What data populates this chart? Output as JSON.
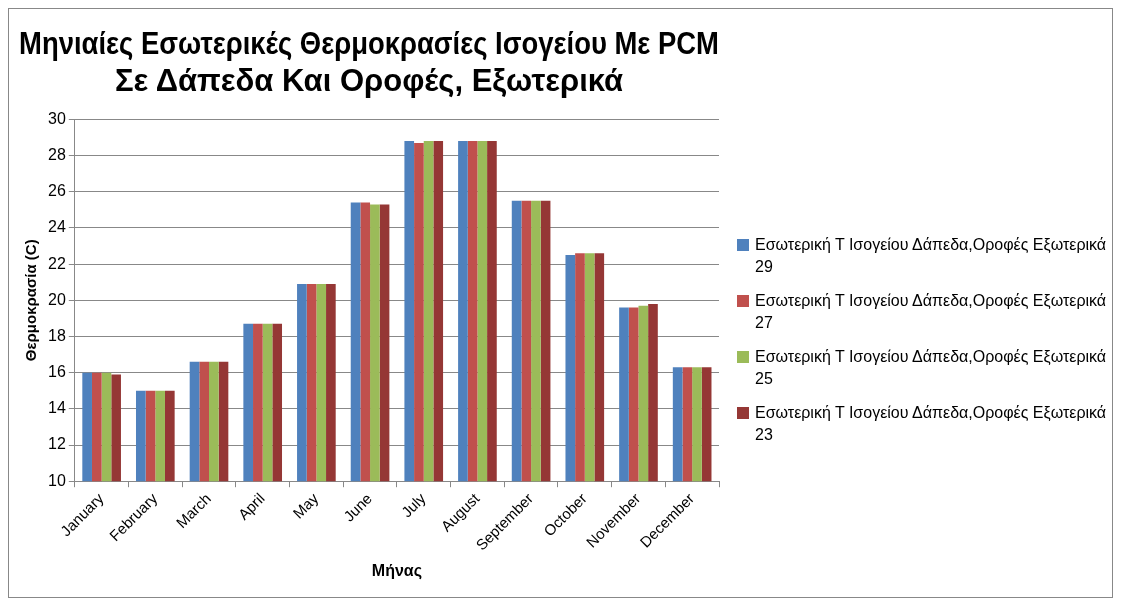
{
  "chart_data": {
    "type": "bar",
    "title": "Μηνιαίες Εσωτερικές Θερμοκρασίες Ισογείου Με PCM Σε Δάπεδα Και Οροφές, Εξωτερικά",
    "xlabel": "Μήνας",
    "ylabel": "Θερμοκρασία (C)",
    "categories": [
      "January",
      "February",
      "March",
      "April",
      "May",
      "June",
      "July",
      "August",
      "September",
      "October",
      "November",
      "December"
    ],
    "series": [
      {
        "name": "Εσωτερική Τ Ισογείου Δάπεδα,Οροφές Εξωτερικά 29",
        "color": "#4f81bd",
        "values": [
          16.0,
          15.0,
          16.6,
          18.7,
          20.9,
          25.4,
          28.8,
          28.8,
          25.5,
          22.5,
          19.6,
          16.3
        ]
      },
      {
        "name": "Εσωτερική Τ Ισογείου Δάπεδα,Οροφές Εξωτερικά 27",
        "color": "#c0504d",
        "values": [
          16.0,
          15.0,
          16.6,
          18.7,
          20.9,
          25.4,
          28.7,
          28.8,
          25.5,
          22.6,
          19.6,
          16.3
        ]
      },
      {
        "name": "Εσωτερική Τ Ισογείου Δάπεδα,Οροφές Εξωτερικά 25",
        "color": "#9bbb59",
        "values": [
          16.0,
          15.0,
          16.6,
          18.7,
          20.9,
          25.3,
          28.8,
          28.8,
          25.5,
          22.6,
          19.7,
          16.3
        ]
      },
      {
        "name": "Εσωτερική Τ Ισογείου Δάπεδα,Οροφές Εξωτερικά 23",
        "color": "#953735",
        "values": [
          15.9,
          15.0,
          16.6,
          18.7,
          20.9,
          25.3,
          28.8,
          28.8,
          25.5,
          22.6,
          19.8,
          16.3
        ]
      }
    ],
    "ylim": [
      10,
      30
    ],
    "yticks": [
      10,
      12,
      14,
      16,
      18,
      20,
      22,
      24,
      26,
      28,
      30
    ],
    "grid": "y",
    "legend": "right"
  }
}
